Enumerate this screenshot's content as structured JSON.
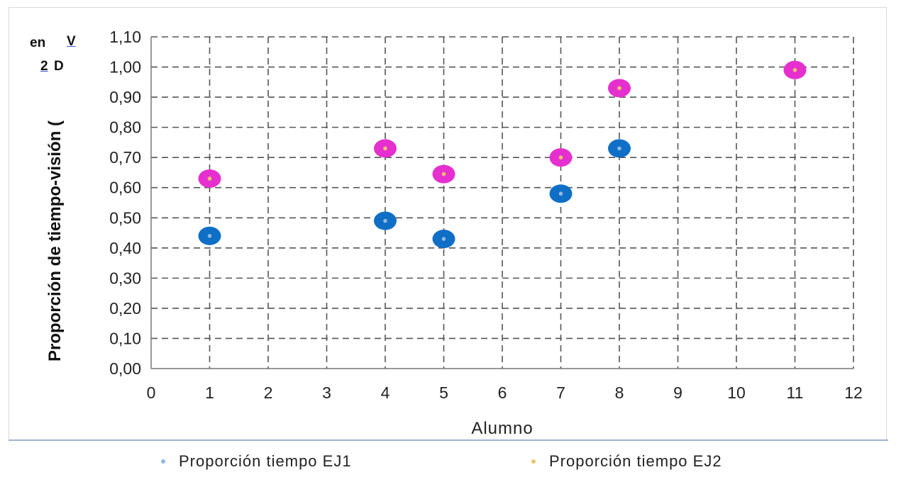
{
  "fragments": {
    "top_line_a": "en",
    "top_line_b": "V",
    "second_line_a": "2",
    "second_line_b": "D"
  },
  "chart_data": {
    "type": "scatter",
    "title": "",
    "xlabel": "Alumno",
    "ylabel": "Proporción de tiempo-visión (",
    "xlim": [
      0,
      12
    ],
    "ylim": [
      0,
      1.1
    ],
    "x_ticks": [
      "0",
      "1",
      "2",
      "3",
      "4",
      "5",
      "6",
      "7",
      "8",
      "9",
      "10",
      "11",
      "12"
    ],
    "y_ticks": [
      "0,00",
      "0,10",
      "0,20",
      "0,30",
      "0,40",
      "0,50",
      "0,60",
      "0,70",
      "0,80",
      "0,90",
      "1,00",
      "1,10"
    ],
    "grid": true,
    "legend_position": "bottom",
    "series": [
      {
        "name": "Proporción tiempo EJ1",
        "color": "#0f6fc6",
        "points": [
          {
            "x": 1,
            "y": 0.44
          },
          {
            "x": 4,
            "y": 0.49
          },
          {
            "x": 5,
            "y": 0.43
          },
          {
            "x": 7,
            "y": 0.58
          },
          {
            "x": 8,
            "y": 0.73
          }
        ]
      },
      {
        "name": "Proporción tiempo EJ2",
        "color": "#e62fcf",
        "points": [
          {
            "x": 1,
            "y": 0.63
          },
          {
            "x": 4,
            "y": 0.73
          },
          {
            "x": 5,
            "y": 0.645
          },
          {
            "x": 7,
            "y": 0.7
          },
          {
            "x": 8,
            "y": 0.93
          },
          {
            "x": 11,
            "y": 0.99
          }
        ]
      }
    ]
  }
}
